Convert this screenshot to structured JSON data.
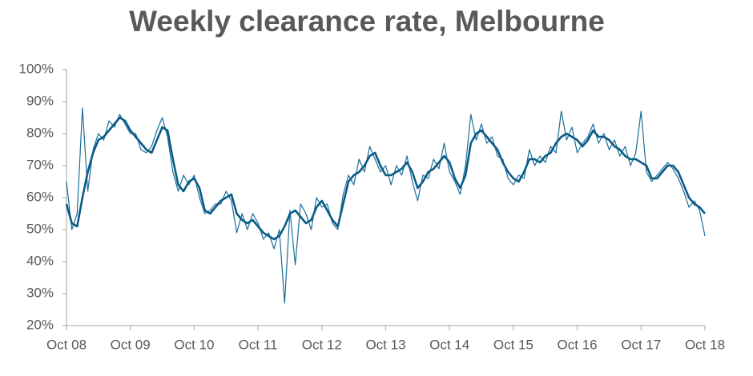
{
  "chart_data": {
    "type": "line",
    "title": "Weekly clearance rate, Melbourne",
    "categories": [
      "Oct 08",
      null,
      null,
      null,
      null,
      null,
      null,
      null,
      null,
      null,
      null,
      null,
      "Oct 09",
      null,
      null,
      null,
      null,
      null,
      null,
      null,
      null,
      null,
      null,
      null,
      "Oct 10",
      null,
      null,
      null,
      null,
      null,
      null,
      null,
      null,
      null,
      null,
      null,
      "Oct 11",
      null,
      null,
      null,
      null,
      null,
      null,
      null,
      null,
      null,
      null,
      null,
      "Oct 12",
      null,
      null,
      null,
      null,
      null,
      null,
      null,
      null,
      null,
      null,
      null,
      "Oct 13",
      null,
      null,
      null,
      null,
      null,
      null,
      null,
      null,
      null,
      null,
      null,
      "Oct 14",
      null,
      null,
      null,
      null,
      null,
      null,
      null,
      null,
      null,
      null,
      null,
      "Oct 15",
      null,
      null,
      null,
      null,
      null,
      null,
      null,
      null,
      null,
      null,
      null,
      "Oct 16",
      null,
      null,
      null,
      null,
      null,
      null,
      null,
      null,
      null,
      null,
      null,
      "Oct 17",
      null,
      null,
      null,
      null,
      null,
      null,
      null,
      null,
      null,
      null,
      null,
      "Oct 18"
    ],
    "series": [
      {
        "color": "#1b6d99",
        "width": 1.2,
        "values": [
          65,
          50,
          55,
          88,
          62,
          75,
          80,
          78,
          84,
          82,
          86,
          83,
          80,
          80,
          75,
          74,
          76,
          81,
          85,
          79,
          68,
          62,
          67,
          64,
          67,
          60,
          55,
          56,
          58,
          58,
          62,
          59,
          49,
          55,
          50,
          55,
          52,
          47,
          49,
          44,
          50,
          27,
          56,
          39,
          58,
          55,
          50,
          60,
          57,
          58,
          52,
          50,
          61,
          67,
          64,
          72,
          68,
          76,
          72,
          68,
          70,
          64,
          70,
          67,
          73,
          65,
          59,
          67,
          66,
          72,
          69,
          77,
          68,
          65,
          61,
          70,
          86,
          78,
          83,
          77,
          79,
          73,
          72,
          66,
          64,
          67,
          66,
          75,
          70,
          73,
          71,
          76,
          74,
          87,
          78,
          82,
          74,
          77,
          79,
          83,
          77,
          80,
          75,
          78,
          73,
          76,
          70,
          74,
          87,
          68,
          65,
          67,
          69,
          71,
          69,
          66,
          62,
          57,
          59,
          56,
          48
        ]
      },
      {
        "color": "#0a5c88",
        "width": 2.6,
        "values": [
          58,
          52,
          51,
          60,
          68,
          74,
          78,
          79,
          81,
          83,
          85,
          84,
          81,
          79,
          77,
          75,
          74,
          78,
          82,
          81,
          72,
          64,
          62,
          65,
          66,
          63,
          56,
          55,
          57,
          59,
          60,
          61,
          55,
          53,
          52,
          53,
          51,
          49,
          48,
          47,
          48,
          51,
          55,
          56,
          54,
          52,
          53,
          57,
          59,
          56,
          53,
          51,
          58,
          65,
          67,
          68,
          70,
          73,
          74,
          70,
          67,
          67,
          68,
          69,
          71,
          68,
          63,
          65,
          68,
          69,
          71,
          73,
          71,
          66,
          63,
          67,
          77,
          80,
          81,
          79,
          77,
          75,
          71,
          68,
          66,
          65,
          68,
          72,
          72,
          71,
          73,
          74,
          77,
          79,
          80,
          79,
          78,
          76,
          78,
          81,
          79,
          79,
          78,
          76,
          75,
          73,
          72,
          72,
          71,
          70,
          66,
          66,
          68,
          70,
          70,
          68,
          64,
          60,
          58,
          57,
          55
        ]
      }
    ],
    "ylim": [
      20,
      100
    ],
    "yticks": [
      {
        "value": 20,
        "label": "20%"
      },
      {
        "value": 30,
        "label": "30%"
      },
      {
        "value": 40,
        "label": "40%"
      },
      {
        "value": 50,
        "label": "50%"
      },
      {
        "value": 60,
        "label": "60%"
      },
      {
        "value": 70,
        "label": "70%"
      },
      {
        "value": 80,
        "label": "80%"
      },
      {
        "value": 90,
        "label": "90%"
      },
      {
        "value": 100,
        "label": "100%"
      }
    ],
    "grid": false
  }
}
